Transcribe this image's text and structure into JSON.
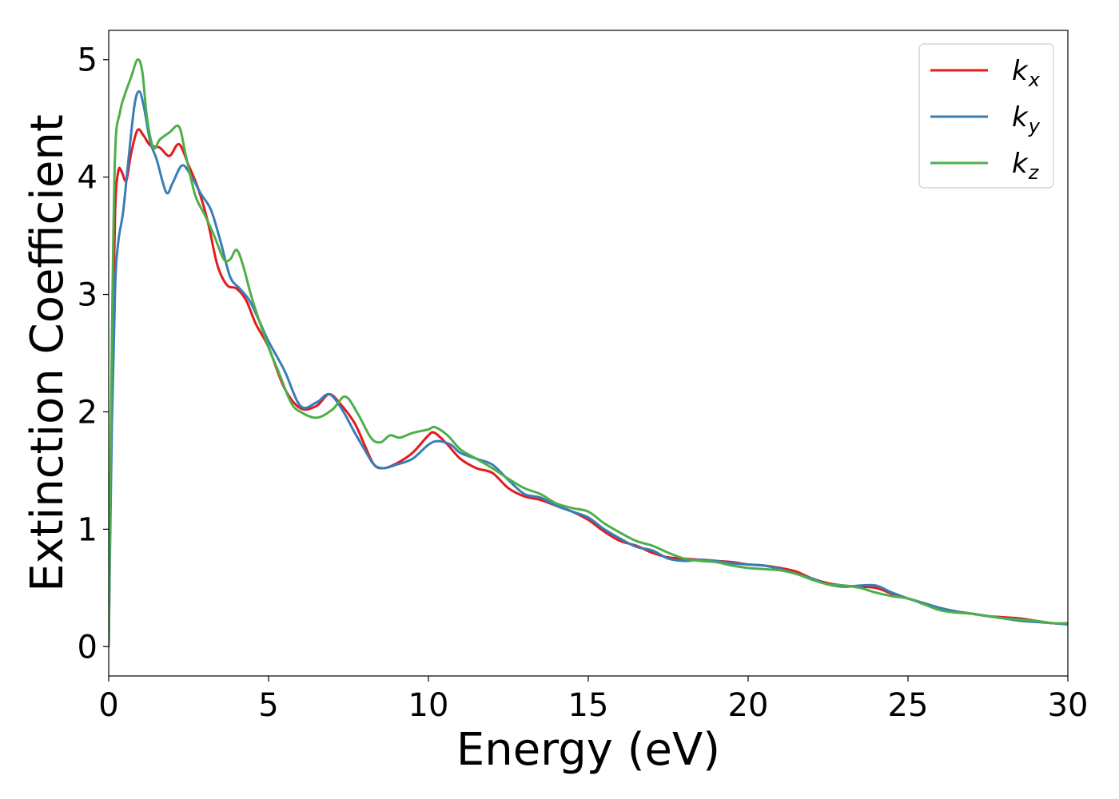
{
  "chart_data": {
    "type": "line",
    "xlabel": "Energy (eV)",
    "ylabel": "Extinction Coefficient",
    "xlim": [
      0,
      30
    ],
    "ylim": [
      -0.25,
      5.25
    ],
    "xticks": [
      0,
      5,
      10,
      15,
      20,
      25,
      30
    ],
    "yticks": [
      0,
      1,
      2,
      3,
      4,
      5
    ],
    "grid": false,
    "legend_position": "top-right",
    "series": [
      {
        "name": "k",
        "subscript": "x",
        "color": "#e41a1c",
        "x": [
          0,
          0.1,
          0.2,
          0.3,
          0.4,
          0.55,
          0.7,
          0.9,
          1.1,
          1.3,
          1.6,
          1.9,
          2.2,
          2.5,
          2.8,
          3.1,
          3.4,
          3.7,
          4.0,
          4.3,
          4.6,
          5.0,
          5.5,
          6.0,
          6.5,
          6.9,
          7.3,
          7.7,
          8.0,
          8.3,
          8.6,
          9.0,
          9.5,
          10.0,
          10.2,
          10.6,
          11.0,
          11.5,
          12.0,
          12.5,
          13.0,
          13.5,
          14.0,
          14.5,
          15.0,
          15.5,
          16.0,
          16.5,
          17.0,
          17.5,
          18.0,
          18.5,
          19.0,
          19.5,
          20.0,
          20.5,
          21.0,
          21.5,
          22.0,
          22.5,
          23.0,
          23.5,
          24.0,
          24.5,
          25.0,
          25.5,
          26.0,
          26.5,
          27.0,
          27.5,
          28.0,
          28.5,
          29.0,
          29.5,
          30.0
        ],
        "y": [
          0.0,
          2.3,
          3.7,
          4.05,
          4.05,
          3.97,
          4.2,
          4.4,
          4.35,
          4.27,
          4.25,
          4.18,
          4.28,
          4.1,
          3.9,
          3.62,
          3.25,
          3.08,
          3.05,
          2.95,
          2.75,
          2.55,
          2.2,
          2.03,
          2.05,
          2.15,
          2.05,
          1.9,
          1.72,
          1.55,
          1.52,
          1.56,
          1.65,
          1.8,
          1.82,
          1.72,
          1.6,
          1.52,
          1.48,
          1.35,
          1.28,
          1.25,
          1.2,
          1.15,
          1.08,
          0.98,
          0.9,
          0.86,
          0.8,
          0.76,
          0.75,
          0.74,
          0.73,
          0.72,
          0.7,
          0.69,
          0.67,
          0.64,
          0.58,
          0.54,
          0.52,
          0.51,
          0.5,
          0.45,
          0.41,
          0.37,
          0.33,
          0.3,
          0.28,
          0.26,
          0.25,
          0.24,
          0.22,
          0.2,
          0.19
        ]
      },
      {
        "name": "k",
        "subscript": "y",
        "color": "#377eb8",
        "x": [
          0,
          0.1,
          0.2,
          0.3,
          0.45,
          0.6,
          0.8,
          0.95,
          1.1,
          1.3,
          1.5,
          1.8,
          2.0,
          2.3,
          2.6,
          2.9,
          3.2,
          3.5,
          3.8,
          4.1,
          4.4,
          4.7,
          5.0,
          5.5,
          6.0,
          6.5,
          6.9,
          7.3,
          7.7,
          8.0,
          8.3,
          8.6,
          9.0,
          9.5,
          10.0,
          10.3,
          10.7,
          11.0,
          11.5,
          12.0,
          12.5,
          13.0,
          13.5,
          14.0,
          14.5,
          15.0,
          15.5,
          16.0,
          16.5,
          17.0,
          17.5,
          18.0,
          18.5,
          19.0,
          19.5,
          20.0,
          20.5,
          21.0,
          21.5,
          22.0,
          22.5,
          23.0,
          23.5,
          24.0,
          24.5,
          25.0,
          25.5,
          26.0,
          26.5,
          27.0,
          27.5,
          28.0,
          28.5,
          29.0,
          29.5,
          30.0
        ],
        "y": [
          0.0,
          1.9,
          3.05,
          3.45,
          3.7,
          4.1,
          4.6,
          4.73,
          4.6,
          4.3,
          4.15,
          3.87,
          3.95,
          4.1,
          4.0,
          3.85,
          3.72,
          3.45,
          3.15,
          3.05,
          2.95,
          2.78,
          2.6,
          2.35,
          2.05,
          2.08,
          2.15,
          2.02,
          1.82,
          1.68,
          1.55,
          1.52,
          1.55,
          1.6,
          1.72,
          1.75,
          1.72,
          1.65,
          1.6,
          1.55,
          1.42,
          1.3,
          1.27,
          1.2,
          1.15,
          1.1,
          1.0,
          0.92,
          0.85,
          0.82,
          0.75,
          0.73,
          0.74,
          0.73,
          0.71,
          0.7,
          0.69,
          0.66,
          0.62,
          0.58,
          0.53,
          0.51,
          0.52,
          0.52,
          0.46,
          0.41,
          0.37,
          0.33,
          0.3,
          0.28,
          0.26,
          0.24,
          0.22,
          0.21,
          0.2,
          0.19
        ]
      },
      {
        "name": "k",
        "subscript": "z",
        "color": "#4daf4a",
        "x": [
          0,
          0.1,
          0.2,
          0.35,
          0.5,
          0.7,
          0.9,
          1.05,
          1.2,
          1.4,
          1.6,
          1.9,
          2.2,
          2.4,
          2.7,
          3.0,
          3.3,
          3.6,
          3.8,
          4.0,
          4.2,
          4.5,
          5.0,
          5.3,
          5.7,
          6.0,
          6.5,
          7.0,
          7.4,
          7.8,
          8.2,
          8.5,
          8.8,
          9.1,
          9.5,
          10.0,
          10.2,
          10.6,
          11.0,
          11.5,
          12.0,
          12.5,
          13.0,
          13.5,
          14.0,
          14.5,
          15.0,
          15.5,
          16.0,
          16.5,
          17.0,
          17.5,
          18.0,
          18.5,
          19.0,
          19.5,
          20.0,
          20.5,
          21.0,
          21.5,
          22.0,
          22.5,
          23.0,
          23.5,
          24.0,
          24.5,
          25.0,
          25.5,
          26.0,
          26.5,
          27.0,
          27.5,
          28.0,
          28.5,
          29.0,
          29.5,
          30.0
        ],
        "y": [
          0.0,
          2.6,
          4.2,
          4.55,
          4.7,
          4.85,
          5.0,
          4.9,
          4.5,
          4.25,
          4.32,
          4.38,
          4.43,
          4.2,
          3.85,
          3.68,
          3.5,
          3.3,
          3.3,
          3.38,
          3.25,
          2.95,
          2.55,
          2.35,
          2.08,
          2.0,
          1.95,
          2.02,
          2.13,
          1.98,
          1.78,
          1.74,
          1.8,
          1.78,
          1.82,
          1.85,
          1.87,
          1.8,
          1.68,
          1.6,
          1.52,
          1.43,
          1.35,
          1.3,
          1.22,
          1.18,
          1.15,
          1.05,
          0.97,
          0.9,
          0.86,
          0.8,
          0.75,
          0.73,
          0.72,
          0.69,
          0.67,
          0.66,
          0.65,
          0.62,
          0.57,
          0.53,
          0.52,
          0.5,
          0.46,
          0.43,
          0.41,
          0.36,
          0.31,
          0.29,
          0.28,
          0.26,
          0.24,
          0.23,
          0.22,
          0.2,
          0.2
        ]
      }
    ]
  }
}
